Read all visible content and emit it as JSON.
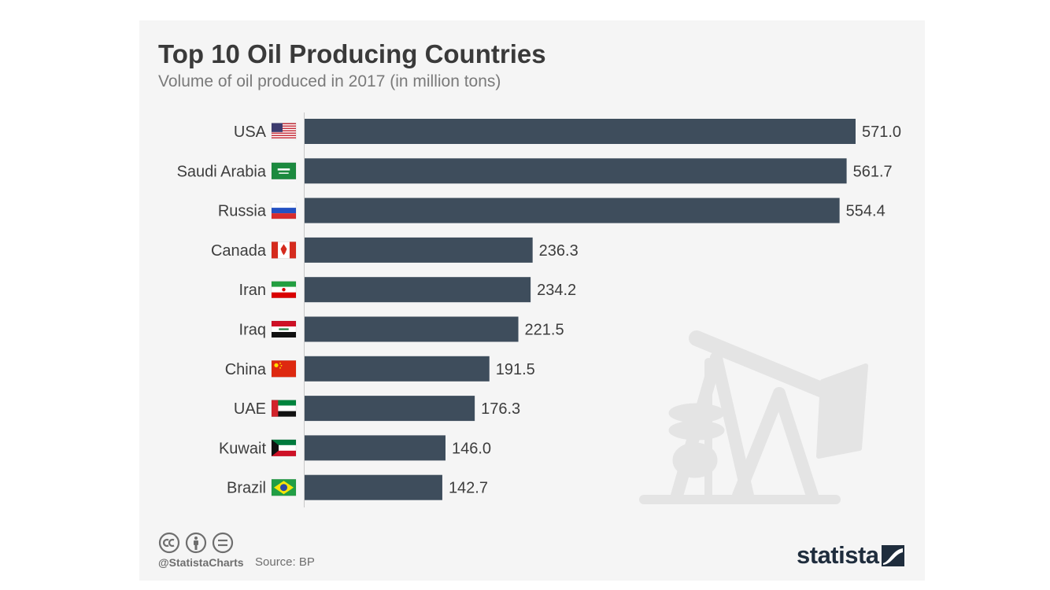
{
  "header": {
    "title": "Top 10 Oil Producing Countries",
    "subtitle": "Volume of oil produced in 2017 (in million tons)"
  },
  "footer": {
    "handle": "@StatistaCharts",
    "source": "Source: BP",
    "brand": "statista",
    "license_icons": [
      "cc-icon",
      "person-icon",
      "equals-icon"
    ]
  },
  "colors": {
    "bar": "#3e4d5c",
    "text": "#3d3d3d",
    "background": "#f5f5f5",
    "watermark": "#e4e4e4"
  },
  "chart_data": {
    "type": "bar",
    "orientation": "horizontal",
    "title": "Top 10 Oil Producing Countries",
    "subtitle": "Volume of oil produced in 2017 (in million tons)",
    "categories": [
      "USA",
      "Saudi Arabia",
      "Russia",
      "Canada",
      "Iran",
      "Iraq",
      "China",
      "UAE",
      "Kuwait",
      "Brazil"
    ],
    "flags": [
      "flag-usa-icon",
      "flag-saudi-arabia-icon",
      "flag-russia-icon",
      "flag-canada-icon",
      "flag-iran-icon",
      "flag-iraq-icon",
      "flag-china-icon",
      "flag-uae-icon",
      "flag-kuwait-icon",
      "flag-brazil-icon"
    ],
    "values": [
      571.0,
      561.7,
      554.4,
      236.3,
      234.2,
      221.5,
      191.5,
      176.3,
      146.0,
      142.7
    ],
    "value_labels": [
      "571.0",
      "561.7",
      "554.4",
      "236.3",
      "234.2",
      "221.5",
      "191.5",
      "176.3",
      "146.0",
      "142.7"
    ],
    "xlim": [
      0,
      571
    ],
    "grid": false,
    "legend": "none"
  }
}
